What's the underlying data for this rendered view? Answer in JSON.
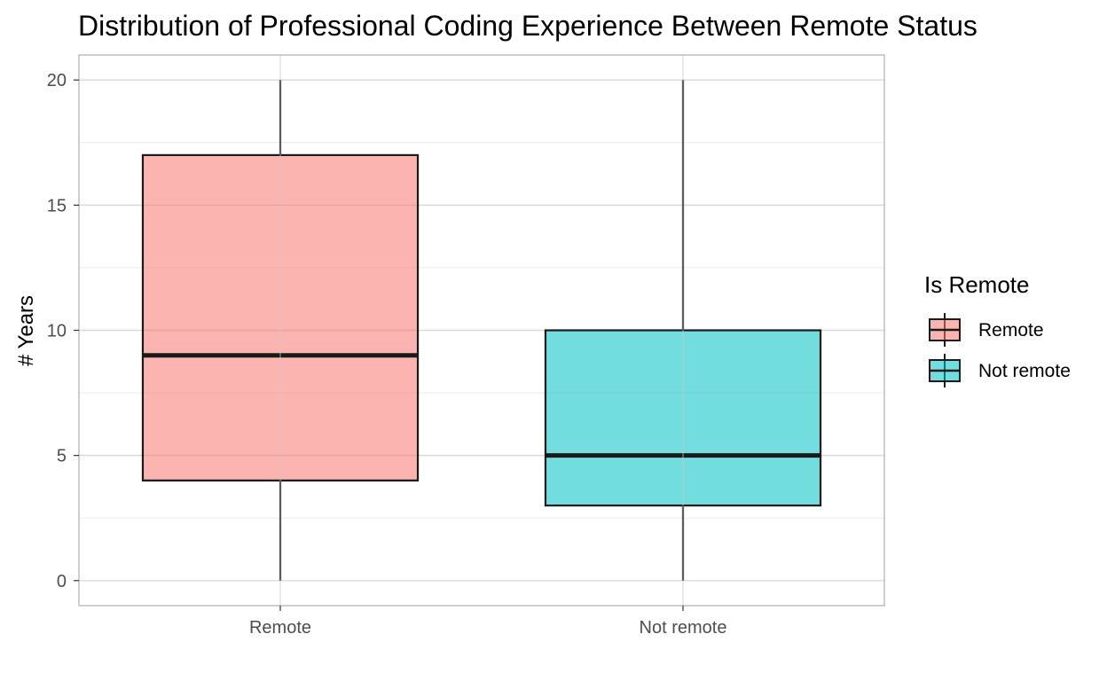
{
  "chart_data": {
    "type": "boxplot",
    "title": "Distribution of Professional Coding Experience Between Remote Status",
    "xlabel": "",
    "ylabel": "# Years",
    "ylim": [
      -1,
      21
    ],
    "yticks": [
      0,
      5,
      10,
      15,
      20
    ],
    "grid": true,
    "legend": {
      "title": "Is Remote",
      "placement": "right"
    },
    "categories": [
      "Remote",
      "Not remote"
    ],
    "series": [
      {
        "name": "Remote",
        "color": "#F8766D",
        "stats": {
          "min": 0,
          "q1": 4,
          "median": 9,
          "q3": 17,
          "max": 20
        }
      },
      {
        "name": "Not remote",
        "color": "#00BFC4",
        "stats": {
          "min": 0,
          "q1": 3,
          "median": 5,
          "q3": 10,
          "max": 20
        }
      }
    ]
  }
}
